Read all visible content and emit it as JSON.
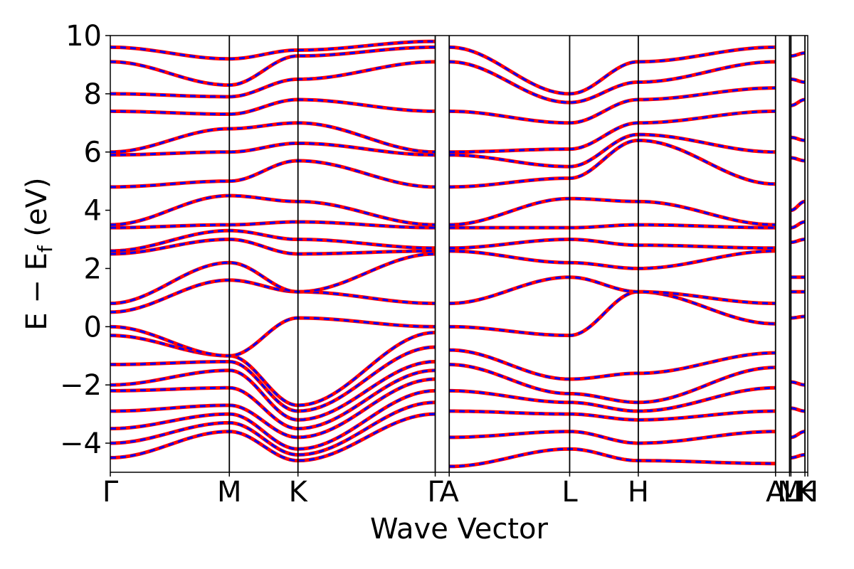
{
  "chart_data": {
    "type": "line",
    "xlabel": "Wave Vector",
    "ylabel": "E − E_f (eV)",
    "ylabel_main": "E − E",
    "ylabel_sub": "f",
    "ylabel_unit": " (eV)",
    "ylim": [
      -5,
      10
    ],
    "yticks": [
      -4,
      -2,
      0,
      2,
      4,
      6,
      8,
      10
    ],
    "ytick_labels": [
      "−4",
      "−2",
      "0",
      "2",
      "4",
      "6",
      "8",
      "10"
    ],
    "xlim": [
      0,
      4.98
    ],
    "kpoints": [
      {
        "label": "Γ",
        "x": 0.0
      },
      {
        "label": "M",
        "x": 0.85
      },
      {
        "label": "K",
        "x": 1.34
      },
      {
        "label": "Γ",
        "x": 2.32
      },
      {
        "label": "A",
        "x": 2.42
      },
      {
        "label": "L",
        "x": 3.28
      },
      {
        "label": "H",
        "x": 3.77
      },
      {
        "label": "A",
        "x": 4.75
      },
      {
        "label": "M",
        "x": 4.85
      },
      {
        "label": "L",
        "x": 4.86
      },
      {
        "label": "K",
        "x": 4.96
      },
      {
        "label": "H",
        "x": 4.98
      }
    ],
    "grid": false,
    "series_styles": [
      {
        "color": "#ff0000",
        "style": "solid"
      },
      {
        "color": "#0000ff",
        "style": "dashed"
      }
    ],
    "bands": [
      {
        "x": [
          0,
          0.85,
          1.34,
          2.32
        ],
        "y": [
          -4.5,
          -3.6,
          -4.6,
          -3.0
        ]
      },
      {
        "x": [
          0,
          0.85,
          1.34,
          2.32
        ],
        "y": [
          -4.0,
          -3.3,
          -4.4,
          -2.6
        ]
      },
      {
        "x": [
          0,
          0.85,
          1.34,
          2.32
        ],
        "y": [
          -3.5,
          -3.0,
          -4.2,
          -2.2
        ]
      },
      {
        "x": [
          0,
          0.85,
          1.34,
          2.32
        ],
        "y": [
          -2.9,
          -2.7,
          -3.8,
          -1.8
        ]
      },
      {
        "x": [
          0,
          0.85,
          1.34,
          2.32
        ],
        "y": [
          -2.2,
          -2.1,
          -3.5,
          -1.5
        ]
      },
      {
        "x": [
          0,
          0.85,
          1.34,
          2.32
        ],
        "y": [
          -2.0,
          -1.5,
          -3.2,
          -1.2
        ]
      },
      {
        "x": [
          0,
          0.85,
          1.34,
          2.32
        ],
        "y": [
          -1.3,
          -1.2,
          -2.9,
          -0.7
        ]
      },
      {
        "x": [
          0,
          0.85,
          1.34,
          2.32
        ],
        "y": [
          -0.3,
          -1.0,
          -2.7,
          -0.2
        ]
      },
      {
        "x": [
          0,
          0.85,
          1.34,
          2.32
        ],
        "y": [
          0.0,
          -1.0,
          0.3,
          0.0
        ]
      },
      {
        "x": [
          0,
          0.85,
          1.34,
          2.32
        ],
        "y": [
          0.5,
          1.6,
          1.2,
          0.8
        ]
      },
      {
        "x": [
          0,
          0.85,
          1.34,
          2.32
        ],
        "y": [
          0.8,
          2.2,
          1.2,
          2.5
        ]
      },
      {
        "x": [
          0,
          0.85,
          1.34,
          2.32
        ],
        "y": [
          2.5,
          3.0,
          2.5,
          2.6
        ]
      },
      {
        "x": [
          0,
          0.85,
          1.34,
          2.32
        ],
        "y": [
          2.6,
          3.3,
          3.0,
          2.7
        ]
      },
      {
        "x": [
          0,
          0.85,
          1.34,
          2.32
        ],
        "y": [
          3.4,
          3.5,
          3.6,
          3.4
        ]
      },
      {
        "x": [
          0,
          0.85,
          1.34,
          2.32
        ],
        "y": [
          3.5,
          4.5,
          4.3,
          3.5
        ]
      },
      {
        "x": [
          0,
          0.85,
          1.34,
          2.32
        ],
        "y": [
          4.8,
          5.0,
          5.7,
          4.8
        ]
      },
      {
        "x": [
          0,
          0.85,
          1.34,
          2.32
        ],
        "y": [
          5.9,
          6.0,
          6.3,
          5.9
        ]
      },
      {
        "x": [
          0,
          0.85,
          1.34,
          2.32
        ],
        "y": [
          6.0,
          6.8,
          7.0,
          6.0
        ]
      },
      {
        "x": [
          0,
          0.85,
          1.34,
          2.32
        ],
        "y": [
          7.4,
          7.3,
          7.8,
          7.4
        ]
      },
      {
        "x": [
          0,
          0.85,
          1.34,
          2.32
        ],
        "y": [
          8.0,
          7.9,
          8.5,
          9.1
        ]
      },
      {
        "x": [
          0,
          0.85,
          1.34,
          2.32
        ],
        "y": [
          9.1,
          8.3,
          9.3,
          9.6
        ]
      },
      {
        "x": [
          0,
          0.85,
          1.34,
          2.32
        ],
        "y": [
          9.6,
          9.2,
          9.5,
          9.8
        ]
      },
      {
        "x": [
          2.42,
          3.28,
          3.77,
          4.75
        ],
        "y": [
          -4.8,
          -4.2,
          -4.6,
          -4.7
        ]
      },
      {
        "x": [
          2.42,
          3.28,
          3.77,
          4.75
        ],
        "y": [
          -3.8,
          -3.6,
          -4.0,
          -3.6
        ]
      },
      {
        "x": [
          2.42,
          3.28,
          3.77,
          4.75
        ],
        "y": [
          -2.9,
          -3.0,
          -3.2,
          -2.9
        ]
      },
      {
        "x": [
          2.42,
          3.28,
          3.77,
          4.75
        ],
        "y": [
          -2.2,
          -2.6,
          -2.9,
          -2.1
        ]
      },
      {
        "x": [
          2.42,
          3.28,
          3.77,
          4.75
        ],
        "y": [
          -1.3,
          -2.3,
          -2.6,
          -1.4
        ]
      },
      {
        "x": [
          2.42,
          3.28,
          3.77,
          4.75
        ],
        "y": [
          -0.8,
          -1.8,
          -1.6,
          -0.9
        ]
      },
      {
        "x": [
          2.42,
          3.28,
          3.77,
          4.75
        ],
        "y": [
          0.0,
          -0.3,
          1.2,
          0.1
        ]
      },
      {
        "x": [
          2.42,
          3.28,
          3.77,
          4.75
        ],
        "y": [
          0.8,
          1.7,
          1.2,
          0.8
        ]
      },
      {
        "x": [
          2.42,
          3.28,
          3.77,
          4.75
        ],
        "y": [
          2.6,
          2.2,
          2.0,
          2.6
        ]
      },
      {
        "x": [
          2.42,
          3.28,
          3.77,
          4.75
        ],
        "y": [
          2.7,
          3.0,
          2.8,
          2.7
        ]
      },
      {
        "x": [
          2.42,
          3.28,
          3.77,
          4.75
        ],
        "y": [
          3.4,
          3.4,
          3.5,
          3.4
        ]
      },
      {
        "x": [
          2.42,
          3.28,
          3.77,
          4.75
        ],
        "y": [
          3.5,
          4.4,
          4.3,
          3.5
        ]
      },
      {
        "x": [
          2.42,
          3.28,
          3.77,
          4.75
        ],
        "y": [
          4.8,
          5.1,
          6.4,
          4.9
        ]
      },
      {
        "x": [
          2.42,
          3.28,
          3.77,
          4.75
        ],
        "y": [
          5.9,
          5.5,
          6.6,
          6.0
        ]
      },
      {
        "x": [
          2.42,
          3.28,
          3.77,
          4.75
        ],
        "y": [
          6.0,
          6.1,
          7.0,
          7.4
        ]
      },
      {
        "x": [
          2.42,
          3.28,
          3.77,
          4.75
        ],
        "y": [
          7.4,
          7.0,
          7.8,
          8.2
        ]
      },
      {
        "x": [
          2.42,
          3.28,
          3.77,
          4.75
        ],
        "y": [
          9.1,
          7.7,
          8.4,
          9.1
        ]
      },
      {
        "x": [
          2.42,
          3.28,
          3.77,
          4.75
        ],
        "y": [
          9.6,
          8.0,
          9.1,
          9.6
        ]
      },
      {
        "x": [
          4.86,
          4.96
        ],
        "y": [
          -4.5,
          -4.4
        ]
      },
      {
        "x": [
          4.86,
          4.96
        ],
        "y": [
          -3.8,
          -3.6
        ]
      },
      {
        "x": [
          4.86,
          4.96
        ],
        "y": [
          -2.8,
          -2.9
        ]
      },
      {
        "x": [
          4.86,
          4.96
        ],
        "y": [
          -1.9,
          -2.0
        ]
      },
      {
        "x": [
          4.86,
          4.96
        ],
        "y": [
          0.3,
          0.35
        ]
      },
      {
        "x": [
          4.86,
          4.96
        ],
        "y": [
          1.2,
          1.2
        ]
      },
      {
        "x": [
          4.86,
          4.96
        ],
        "y": [
          1.7,
          1.7
        ]
      },
      {
        "x": [
          4.86,
          4.96
        ],
        "y": [
          2.9,
          3.0
        ]
      },
      {
        "x": [
          4.86,
          4.96
        ],
        "y": [
          3.4,
          3.6
        ]
      },
      {
        "x": [
          4.86,
          4.96
        ],
        "y": [
          4.0,
          4.3
        ]
      },
      {
        "x": [
          4.86,
          4.96
        ],
        "y": [
          5.8,
          5.7
        ]
      },
      {
        "x": [
          4.86,
          4.96
        ],
        "y": [
          6.5,
          6.4
        ]
      },
      {
        "x": [
          4.86,
          4.96
        ],
        "y": [
          7.6,
          7.8
        ]
      },
      {
        "x": [
          4.86,
          4.96
        ],
        "y": [
          8.5,
          8.4
        ]
      },
      {
        "x": [
          4.86,
          4.96
        ],
        "y": [
          9.3,
          9.4
        ]
      }
    ]
  }
}
